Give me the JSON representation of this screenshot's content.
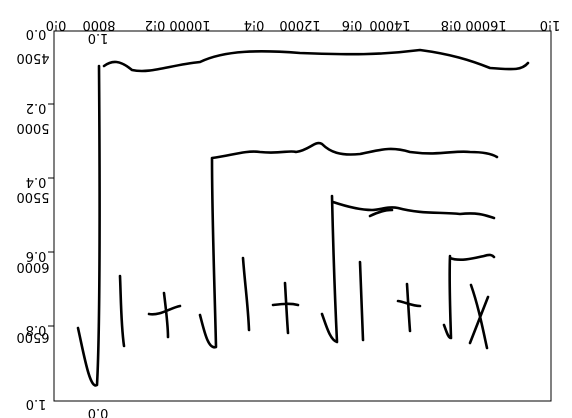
{
  "figure": {
    "frame_ticks": {
      "left": [
        "0.0",
        "0.2",
        "0.4",
        "0.6",
        "0.8",
        "1.0"
      ],
      "top": [
        "0.0",
        "0.2",
        "0.4",
        "0.6",
        "0.8",
        "1.0"
      ]
    },
    "inner_ticks": {
      "left": [
        "4500",
        "5000",
        "5500",
        "6000",
        "6500"
      ],
      "top": [
        "8000",
        "10000",
        "12000",
        "14000",
        "16000"
      ]
    },
    "corner_labels": {
      "top_small": "1.0",
      "bottom_small": "0.0"
    }
  }
}
